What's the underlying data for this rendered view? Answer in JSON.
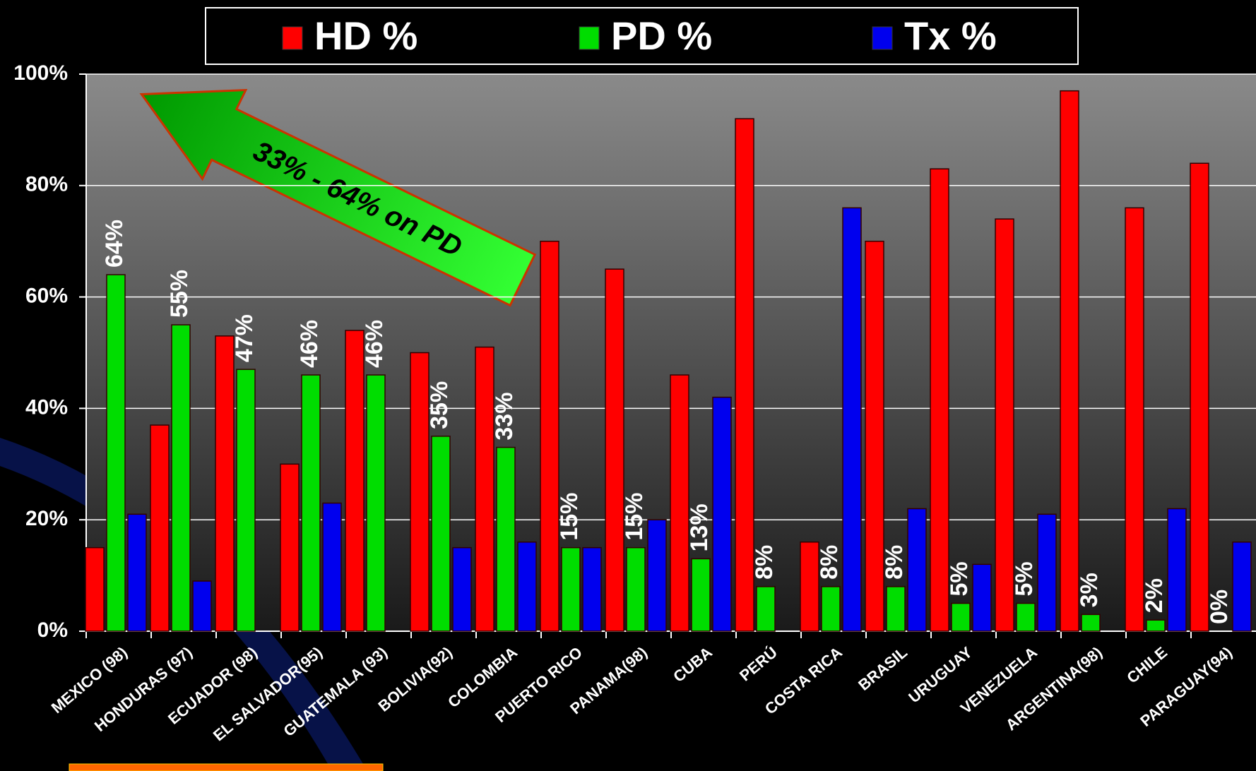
{
  "chart_data": {
    "type": "bar",
    "categories": [
      "MEXICO (98)",
      "HONDURAS (97)",
      "ECUADOR (98)",
      "EL SALVADOR(95)",
      "GUATEMALA (93)",
      "BOLIVIA(92)",
      "COLOMBIA",
      "PUERTO RICO",
      "PANAMA(98)",
      "CUBA",
      "PERÚ",
      "COSTA RICA",
      "BRASIL",
      "URUGUAY",
      "VENEZUELA",
      "ARGENTINA(98)",
      "CHILE",
      "PARAGUAY(94)"
    ],
    "series": [
      {
        "name": "HD %",
        "color": "#ff0000",
        "values": [
          15,
          37,
          53,
          30,
          54,
          50,
          51,
          70,
          65,
          46,
          92,
          16,
          70,
          83,
          74,
          97,
          76,
          84
        ]
      },
      {
        "name": "PD %",
        "color": "#00dd00",
        "values": [
          64,
          55,
          47,
          46,
          46,
          35,
          33,
          15,
          15,
          13,
          8,
          8,
          8,
          5,
          5,
          3,
          2,
          0
        ],
        "value_labels": [
          "64%",
          "55%",
          "47%",
          "46%",
          "46%",
          "35%",
          "33%",
          "15%",
          "15%",
          "13%",
          "8%",
          "8%",
          "8%",
          "5%",
          "5%",
          "3%",
          "2%",
          "0%"
        ]
      },
      {
        "name": "Tx %",
        "color": "#0000ee",
        "values": [
          21,
          9,
          0,
          23,
          0,
          15,
          16,
          15,
          20,
          42,
          0,
          76,
          22,
          12,
          21,
          0,
          22,
          16
        ]
      }
    ],
    "ylim": [
      0,
      100
    ],
    "yticks": [
      {
        "value": 0,
        "label": "0%"
      },
      {
        "value": 20,
        "label": "20%"
      },
      {
        "value": 40,
        "label": "40%"
      },
      {
        "value": 60,
        "label": "60%"
      },
      {
        "value": 80,
        "label": "80%"
      },
      {
        "value": 100,
        "label": "100%"
      }
    ],
    "grid": true,
    "legend": "top",
    "annotation": "33% - 64% on PD"
  }
}
